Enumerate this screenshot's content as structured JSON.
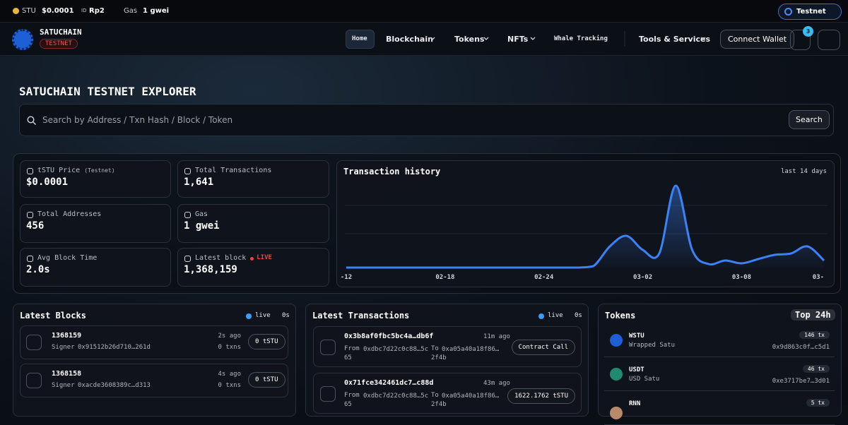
{
  "topbar": {
    "price_symbol": "STU",
    "price": "$0.0001",
    "id_label": "ID",
    "id_value": "Rp2",
    "gas_label": "Gas",
    "gas_value": "1 gwei",
    "network": "Testnet"
  },
  "nav": {
    "brand": "SATUCHAIN",
    "badge": "TESTNET",
    "items": [
      "Home",
      "Blockchain",
      "Tokens",
      "NFTs",
      "Whale Tracking",
      "Tools & Services"
    ],
    "connect": "Connect Wallet",
    "notifications": "3"
  },
  "hero": {
    "title": "SATUCHAIN TESTNET EXPLORER",
    "search_placeholder": "Search by Address / Txn Hash / Block / Token",
    "search_button": "Search"
  },
  "stats": [
    {
      "label": "tSTU Price",
      "note": "(Testnet)",
      "value": "$0.0001"
    },
    {
      "label": "Total Transactions",
      "value": "1,641"
    },
    {
      "label": "Total Addresses",
      "value": "456"
    },
    {
      "label": "Gas",
      "value": "1 gwei"
    },
    {
      "label": "Avg Block Time",
      "value": "2.0s"
    },
    {
      "label": "Latest block",
      "note": "LIVE",
      "value": "1,368,159"
    }
  ],
  "history": {
    "title": "Transaction history",
    "range": "last 14 days",
    "color": "#3b82f6",
    "categories": [
      "-12",
      null,
      null,
      null,
      null,
      null,
      "02-18",
      null,
      null,
      null,
      null,
      null,
      "02-24",
      null,
      null,
      null,
      null,
      null,
      "03-02",
      null,
      null,
      null,
      null,
      null,
      "03-08",
      null,
      null,
      null,
      null,
      "03-"
    ],
    "values": [
      0,
      0,
      0,
      0,
      0,
      0,
      0,
      0,
      0,
      0,
      0,
      0,
      0,
      0,
      0,
      2,
      30,
      45,
      25,
      20,
      116,
      25,
      5,
      10,
      6,
      12,
      18,
      20,
      30,
      10
    ]
  },
  "blocks": {
    "title": "Latest Blocks",
    "live": "live",
    "age": "0s",
    "items": [
      {
        "number": "1368159",
        "signer_label": "Signer",
        "signer": "0x91512b26d710…261d",
        "age": "2s ago",
        "txns": "0 txns",
        "reward": "0 tSTU"
      },
      {
        "number": "1368158",
        "signer_label": "Signer",
        "signer": "0xacde3608389c…d313",
        "age": "4s ago",
        "txns": "0 txns",
        "reward": "0 tSTU"
      }
    ]
  },
  "transactions": {
    "title": "Latest Transactions",
    "live": "live",
    "age": "0s",
    "items": [
      {
        "hash": "0x3b8af0fbc5bc4a…db6f",
        "age": "11m ago",
        "from_label": "From",
        "from": "0xdbc7d22c0c88…5c65",
        "to_label": "To",
        "to": "0xa05a40a18f86…2f4b",
        "badge": "Contract Call"
      },
      {
        "hash": "0x71fce342461dc7…c88d",
        "age": "43m ago",
        "from_label": "From",
        "from": "0xdbc7d22c0c88…5c65",
        "to_label": "To",
        "to": "0xa05a40a18f86…2f4b",
        "badge": "1622.1762 tSTU"
      }
    ]
  },
  "tokens": {
    "title": "Tokens",
    "badge": "Top 24h",
    "items": [
      {
        "symbol": "WSTU",
        "name": "Wrapped Satu",
        "tx": "146 tx",
        "address": "0x9d863c0f…c5d1"
      },
      {
        "symbol": "USDT",
        "name": "USD Satu",
        "tx": "46 tx",
        "address": "0xe3717be7…3d01"
      },
      {
        "symbol": "RNN",
        "tx": "5 tx"
      }
    ]
  }
}
